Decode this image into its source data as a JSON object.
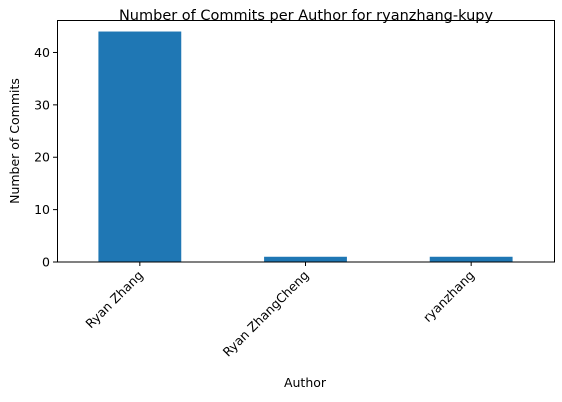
{
  "chart_data": {
    "type": "bar",
    "title": "Number of Commits per Author for ryanzhang-kupy",
    "xlabel": "Author",
    "ylabel": "Number of Commits",
    "categories": [
      "Ryan Zhang",
      "Ryan ZhangCheng",
      "ryanzhang"
    ],
    "values": [
      44,
      1,
      1
    ],
    "ylim": [
      0,
      46.2
    ],
    "yticks": [
      0,
      10,
      20,
      30,
      40
    ],
    "grid": false,
    "legend": "none",
    "bar_color": "#1f77b4"
  }
}
